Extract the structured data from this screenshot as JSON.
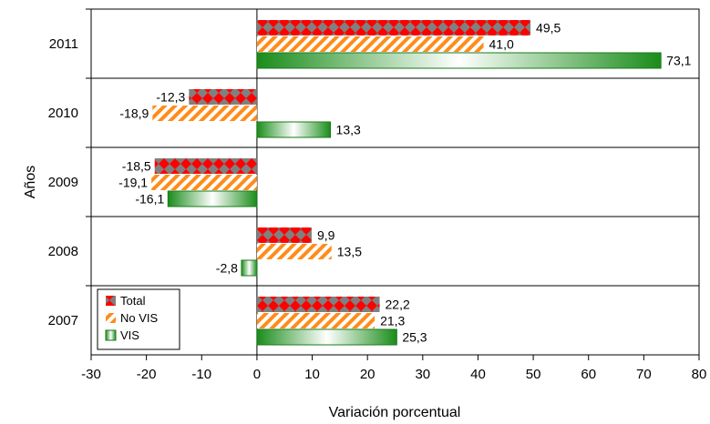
{
  "chart_data": {
    "type": "bar",
    "orientation": "horizontal",
    "categories": [
      "2011",
      "2010",
      "2009",
      "2008",
      "2007"
    ],
    "series": [
      {
        "name": "Total",
        "values": [
          49.5,
          -12.3,
          -18.5,
          9.9,
          22.2
        ],
        "labels": [
          "49,5",
          "-12,3",
          "-18,5",
          "9,9",
          "22,2"
        ]
      },
      {
        "name": "No VIS",
        "values": [
          41.0,
          -18.9,
          -19.1,
          13.5,
          21.3
        ],
        "labels": [
          "41,0",
          "-18,9",
          "-19,1",
          "13,5",
          "21,3"
        ]
      },
      {
        "name": "VIS",
        "values": [
          73.1,
          13.3,
          -16.1,
          -2.8,
          25.3
        ],
        "labels": [
          "73,1",
          "13,3",
          "-16,1",
          "-2,8",
          "25,3"
        ]
      }
    ],
    "xlabel": "Variación porcentual",
    "ylabel": "Años",
    "xlim": [
      -30,
      80
    ],
    "xticks": [
      "-30",
      "-20",
      "-10",
      "0",
      "10",
      "20",
      "30",
      "40",
      "50",
      "60",
      "70",
      "80"
    ],
    "gridlines": "horizontal separators between years",
    "legend_position": "bottom-left",
    "colors": {
      "Total": "#ff0000",
      "Total_alt": "#808080",
      "No VIS": "#ff8c1a",
      "VIS": "#1a8c1a"
    }
  }
}
